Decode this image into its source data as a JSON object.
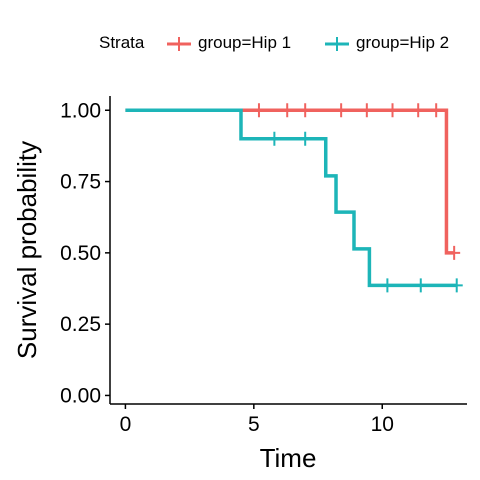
{
  "legend": {
    "title": "Strata",
    "items": [
      {
        "label": "group=Hip 1",
        "color": "#F0625E"
      },
      {
        "label": "group=Hip 2",
        "color": "#1DB5B8"
      }
    ],
    "placement": "top"
  },
  "chart_data": {
    "type": "line",
    "subtype": "kaplan-meier step",
    "title": "",
    "xlabel": "Time",
    "ylabel": "Survival probability",
    "xlim": [
      -0.6,
      13.3
    ],
    "ylim": [
      -0.03,
      1.05
    ],
    "x_ticks": [
      0,
      5,
      10
    ],
    "y_ticks": [
      0.0,
      0.25,
      0.5,
      0.75,
      1.0
    ],
    "x_tick_labels": [
      "0",
      "5",
      "10"
    ],
    "y_tick_labels": [
      "0.00",
      "0.25",
      "0.50",
      "0.75",
      "1.00"
    ],
    "grid": false,
    "series": [
      {
        "name": "group=Hip 1",
        "color": "#F0625E",
        "steps": [
          [
            0,
            1.0
          ],
          [
            12.5,
            0.5
          ],
          [
            12.8,
            0.5
          ]
        ],
        "censor_x": [
          5.2,
          6.3,
          7.0,
          8.4,
          9.4,
          10.4,
          11.4,
          12.1
        ],
        "censor_y": [
          1.0,
          1.0,
          1.0,
          1.0,
          1.0,
          1.0,
          1.0,
          1.0
        ],
        "end_censor": [
          12.8,
          0.5
        ]
      },
      {
        "name": "group=Hip 2",
        "color": "#1DB5B8",
        "steps": [
          [
            0,
            1.0
          ],
          [
            4.5,
            0.9
          ],
          [
            7.8,
            0.77
          ],
          [
            8.2,
            0.643
          ],
          [
            8.9,
            0.514
          ],
          [
            9.5,
            0.386
          ],
          [
            12.9,
            0.386
          ]
        ],
        "censor_x": [
          5.8,
          7.0,
          10.2,
          11.5,
          12.9
        ],
        "censor_y": [
          0.9,
          0.9,
          0.386,
          0.386,
          0.386
        ]
      }
    ]
  }
}
